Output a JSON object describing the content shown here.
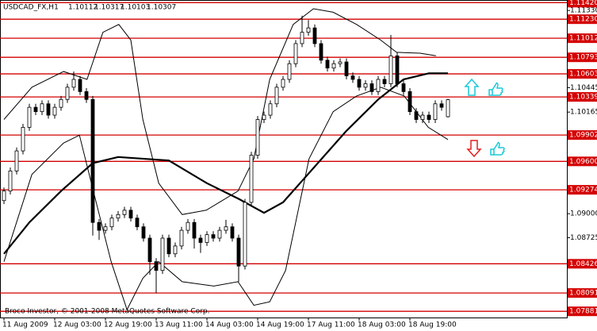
{
  "chart_data": {
    "type": "candlestick",
    "symbol": "USDCAD_FX,H1",
    "footer": "Broco Investor, © 2001-2008 MetaQuotes Software Corp.",
    "categories": [
      "11 Aug 2009",
      null,
      null,
      null,
      null,
      null,
      null,
      null,
      "12 Aug 03:00",
      null,
      null,
      null,
      null,
      null,
      null,
      null,
      "12 Aug 19:00",
      null,
      null,
      null,
      null,
      null,
      null,
      null,
      "13 Aug 11:00",
      null,
      null,
      null,
      null,
      null,
      null,
      null,
      "14 Aug 03:00",
      null,
      null,
      null,
      null,
      null,
      null,
      null,
      "14 Aug 19:00",
      null,
      null,
      null,
      null,
      null,
      null,
      null,
      "17 Aug 11:00",
      null,
      null,
      null,
      null,
      null,
      null,
      null,
      "18 Aug 03:00",
      null,
      null,
      null,
      null,
      null,
      null,
      null,
      "18 Aug 19:00",
      null,
      null,
      null,
      null,
      null,
      null
    ],
    "open": [
      1.0915,
      1.0926,
      1.0949,
      1.0972,
      1.0999,
      1.1022,
      1.1017,
      1.1026,
      1.1013,
      1.1022,
      1.1031,
      1.1045,
      1.1054,
      1.104,
      1.1031,
      1.089,
      1.0881,
      1.0885,
      1.0895,
      1.0899,
      1.0904,
      1.0895,
      1.0885,
      1.0872,
      1.0845,
      1.0835,
      1.0872,
      1.0854,
      1.0863,
      1.0881,
      1.089,
      1.0872,
      1.0867,
      1.0876,
      1.0872,
      1.0881,
      1.0885,
      1.0872,
      1.084,
      1.0913,
      1.0967,
      1.1008,
      1.1013,
      1.1026,
      1.1045,
      1.1054,
      1.1072,
      1.1095,
      1.1108,
      1.1113,
      1.1095,
      1.1076,
      1.1067,
      1.1072,
      1.1074,
      1.1058,
      1.1054,
      1.1045,
      1.1049,
      1.104,
      1.1054,
      1.1049,
      1.1081,
      1.1049,
      1.104,
      1.1017,
      1.1008,
      1.1013,
      1.1008,
      1.1026,
      1.10112
    ],
    "high": [
      1.093,
      1.0953,
      1.0976,
      1.1003,
      1.1026,
      1.1026,
      1.103,
      1.103,
      1.1026,
      1.1035,
      1.1049,
      1.1063,
      1.1058,
      1.1044,
      1.1035,
      1.0894,
      1.0889,
      1.0899,
      1.0903,
      1.0908,
      1.0908,
      1.0899,
      1.0889,
      1.0876,
      1.0849,
      1.0876,
      1.0876,
      1.0867,
      1.0885,
      1.0894,
      1.0894,
      1.0876,
      1.088,
      1.088,
      1.0885,
      1.0893,
      1.0889,
      1.0876,
      1.0917,
      1.0971,
      1.1012,
      1.1017,
      1.103,
      1.1049,
      1.1058,
      1.1076,
      1.1099,
      1.1127,
      1.1122,
      1.1117,
      1.1099,
      1.108,
      1.1076,
      1.1078,
      1.1078,
      1.1062,
      1.1058,
      1.1053,
      1.1053,
      1.1058,
      1.1058,
      1.1105,
      1.1085,
      1.1053,
      1.1044,
      1.1021,
      1.1017,
      1.1017,
      1.103,
      1.103,
      1.10317
    ],
    "low": [
      1.0911,
      1.0922,
      1.0945,
      1.0968,
      1.0995,
      1.1013,
      1.1013,
      1.1009,
      1.1009,
      1.1018,
      1.1027,
      1.1041,
      1.1036,
      1.1027,
      1.0875,
      1.087,
      1.0877,
      1.0881,
      1.0891,
      1.0895,
      1.0891,
      1.0881,
      1.0868,
      1.083,
      1.0809,
      1.0831,
      1.085,
      1.085,
      1.0859,
      1.0877,
      1.086,
      1.0855,
      1.0863,
      1.0868,
      1.0868,
      1.0877,
      1.0868,
      1.0822,
      1.0836,
      1.0909,
      1.0963,
      1.1004,
      1.1009,
      1.1022,
      1.1041,
      1.105,
      1.1068,
      1.1091,
      1.1104,
      1.1091,
      1.1072,
      1.1063,
      1.1063,
      1.1068,
      1.1054,
      1.105,
      1.1041,
      1.1041,
      1.1036,
      1.1036,
      1.1045,
      1.1045,
      1.1045,
      1.1036,
      1.1013,
      1.1004,
      1.1004,
      1.1004,
      1.1004,
      1.1018,
      1.10103
    ],
    "close": [
      1.0926,
      1.0949,
      1.0972,
      1.0999,
      1.1022,
      1.1017,
      1.1026,
      1.1013,
      1.1022,
      1.1031,
      1.1045,
      1.1054,
      1.104,
      1.1031,
      1.089,
      1.0881,
      1.0885,
      1.0895,
      1.0899,
      1.0904,
      1.0895,
      1.0885,
      1.0872,
      1.0845,
      1.0835,
      1.0872,
      1.0854,
      1.0863,
      1.0881,
      1.089,
      1.0872,
      1.0867,
      1.0876,
      1.0872,
      1.0881,
      1.0885,
      1.0872,
      1.084,
      1.0913,
      1.0967,
      1.1008,
      1.1013,
      1.1026,
      1.1045,
      1.1054,
      1.1072,
      1.1095,
      1.1108,
      1.1113,
      1.1095,
      1.1076,
      1.1067,
      1.1072,
      1.1074,
      1.1058,
      1.1054,
      1.1045,
      1.1049,
      1.104,
      1.1054,
      1.1049,
      1.1081,
      1.1049,
      1.104,
      1.1017,
      1.1008,
      1.1013,
      1.1008,
      1.1026,
      1.1022,
      1.10307
    ],
    "moving_average": {
      "x": [
        0,
        4,
        9,
        14,
        18,
        26,
        32,
        37,
        41,
        44,
        49,
        54,
        59,
        63,
        67,
        70
      ],
      "values": [
        1.0854,
        1.089,
        1.0926,
        1.0958,
        1.0965,
        1.0961,
        1.0935,
        1.0917,
        1.0901,
        1.0913,
        1.0954,
        1.0995,
        1.1031,
        1.1054,
        1.1061,
        1.1061
      ]
    },
    "bollinger_upper": {
      "x": [
        0,
        4.4,
        9.4,
        13.1,
        15.6,
        18.1,
        20,
        21.9,
        24.4,
        28.1,
        31.9,
        36.9,
        39.4,
        41.9,
        45.6,
        48.8,
        51.9,
        55.6,
        59.4,
        61.9,
        65.6,
        68.1
      ],
      "values": [
        1.1008,
        1.1045,
        1.1063,
        1.1054,
        1.1108,
        1.1117,
        1.1099,
        1.1008,
        1.0935,
        1.0899,
        1.0904,
        1.0926,
        1.0963,
        1.1054,
        1.1117,
        1.1135,
        1.1131,
        1.1117,
        1.1099,
        1.1085,
        1.1084,
        1.1081
      ]
    },
    "bollinger_lower": {
      "x": [
        0,
        4.4,
        9.4,
        11.9,
        14.4,
        16.9,
        19.4,
        21.9,
        24.4,
        28.1,
        33.1,
        36.9,
        39.4,
        41.9,
        44.4,
        48.1,
        51.9,
        55.6,
        59.4,
        63.1,
        66.9,
        70
      ],
      "values": [
        1.0845,
        1.0945,
        1.0981,
        1.099,
        1.0917,
        1.0845,
        1.079,
        1.0826,
        1.0845,
        1.0822,
        1.0817,
        1.0822,
        1.0795,
        1.0799,
        1.0835,
        1.0963,
        1.1017,
        1.1035,
        1.1045,
        1.1035,
        1.0999,
        1.0985
      ]
    },
    "ylim": [
      1.0781,
      1.1145
    ],
    "yticks": [
      {
        "value": 1.1133,
        "label": "1.11330"
      },
      {
        "value": 1.10445,
        "label": "1.10445"
      },
      {
        "value": 1.10165,
        "label": "1.10165"
      },
      {
        "value": 1.09,
        "label": "1.09000"
      },
      {
        "value": 1.08725,
        "label": "1.08725"
      }
    ],
    "levels": [
      {
        "value": 1.1142,
        "label": "1.11420"
      },
      {
        "value": 1.1123,
        "label": "1.11230"
      },
      {
        "value": 1.11012,
        "label": "1.11012"
      },
      {
        "value": 1.10793,
        "label": "1.10793"
      },
      {
        "value": 1.10603,
        "label": "1.10603"
      },
      {
        "value": 1.10339,
        "label": "1.10339"
      },
      {
        "value": 1.09902,
        "label": "1.09902"
      },
      {
        "value": 1.096,
        "label": "1.09600"
      },
      {
        "value": 1.09274,
        "label": "1.09274"
      },
      {
        "value": 1.08426,
        "label": "1.08426"
      },
      {
        "value": 1.08091,
        "label": "1.08091"
      },
      {
        "value": 1.07881,
        "label": "1.07881"
      }
    ],
    "level_color": "#d40000",
    "candle_color": "#000000"
  }
}
